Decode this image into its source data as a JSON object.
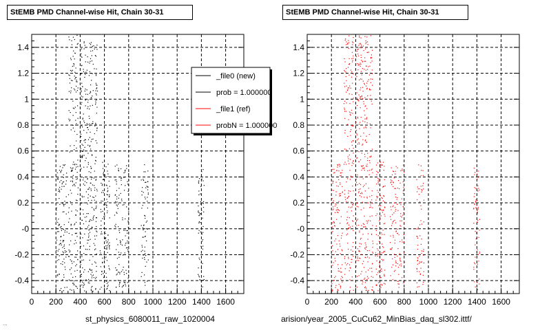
{
  "footer_text": "...",
  "chart_data": [
    {
      "type": "scatter",
      "title": "StEMB PMD Channel-wise Hit, Chain 30-31",
      "xlabel": "st_physics_6080011_raw_1020004",
      "ylabel": "",
      "xlim": [
        0,
        1750
      ],
      "ylim": [
        -0.5,
        1.5
      ],
      "x_ticks": [
        "0",
        "200",
        "400",
        "600",
        "800",
        "1000",
        "1200",
        "1400",
        "1600"
      ],
      "y_ticks": [
        "-0.4",
        "-0.2",
        "-0",
        "0.2",
        "0.4",
        "0.6",
        "0.8",
        "1",
        "1.2",
        "1.4"
      ],
      "grid": true,
      "legend": {
        "placement": "top-right",
        "entries": [
          {
            "label": "_file0 (new)",
            "color": "#000000"
          },
          {
            "label": "prob = 1.000000",
            "color": "#000000"
          },
          {
            "label": "_file1 (ref)",
            "color": "#ff0000"
          },
          {
            "label": "probN = 1.000000",
            "color": "#ff0000"
          }
        ]
      },
      "series": [
        {
          "color": "#000000",
          "clusters": [
            {
              "x": [
                200,
                290
              ],
              "y": [
                -0.48,
                0.5
              ],
              "n": 120
            },
            {
              "x": [
                300,
                380
              ],
              "y": [
                -0.48,
                1.5
              ],
              "n": 180
            },
            {
              "x": [
                400,
                540
              ],
              "y": [
                -0.48,
                1.5
              ],
              "n": 340
            },
            {
              "x": [
                560,
                640
              ],
              "y": [
                -0.48,
                0.52
              ],
              "n": 120
            },
            {
              "x": [
                680,
                800
              ],
              "y": [
                -0.45,
                0.5
              ],
              "n": 130
            },
            {
              "x": [
                900,
                960
              ],
              "y": [
                -0.45,
                0.5
              ],
              "n": 70
            },
            {
              "x": [
                1370,
                1420
              ],
              "y": [
                -0.48,
                0.5
              ],
              "n": 60
            }
          ]
        }
      ]
    },
    {
      "type": "scatter",
      "title": "StEMB PMD Channel-wise Hit, Chain 30-31",
      "xlabel": "arision/year_2005_CuCu62_MinBias_daq_sl302.ittf/",
      "ylabel": "",
      "xlim": [
        0,
        1750
      ],
      "ylim": [
        -0.5,
        1.5
      ],
      "x_ticks": [
        "0",
        "200",
        "400",
        "600",
        "800",
        "1000",
        "1200",
        "1400",
        "1600"
      ],
      "y_ticks": [
        "-0.4",
        "-0.2",
        "-0",
        "0.2",
        "0.4",
        "0.6",
        "0.8",
        "1",
        "1.2",
        "1.4"
      ],
      "grid": true,
      "series": [
        {
          "color": "#ff0000",
          "clusters": [
            {
              "x": [
                200,
                290
              ],
              "y": [
                -0.48,
                0.5
              ],
              "n": 120
            },
            {
              "x": [
                300,
                380
              ],
              "y": [
                -0.48,
                1.5
              ],
              "n": 180
            },
            {
              "x": [
                400,
                540
              ],
              "y": [
                -0.48,
                1.5
              ],
              "n": 340
            },
            {
              "x": [
                560,
                640
              ],
              "y": [
                -0.48,
                0.52
              ],
              "n": 120
            },
            {
              "x": [
                680,
                800
              ],
              "y": [
                -0.45,
                0.5
              ],
              "n": 130
            },
            {
              "x": [
                900,
                960
              ],
              "y": [
                -0.45,
                0.5
              ],
              "n": 70
            },
            {
              "x": [
                1370,
                1420
              ],
              "y": [
                -0.48,
                0.5
              ],
              "n": 60
            }
          ]
        }
      ]
    }
  ]
}
